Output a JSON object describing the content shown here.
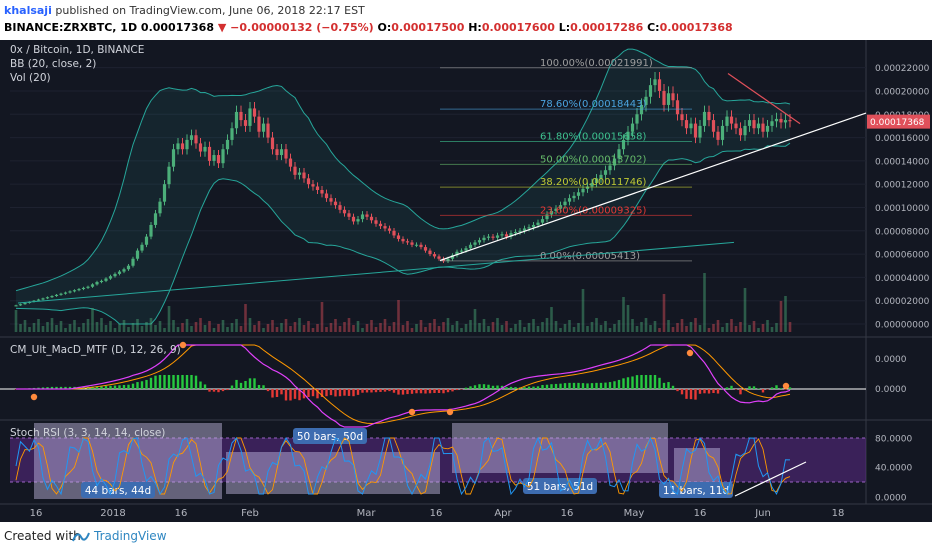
{
  "header": {
    "user": "khalsaji",
    "published": "published on TradingView.com, June 06, 2018 22:17 EST",
    "symbol": "BINANCE:ZRXBTC, 1D",
    "last": "0.00017368",
    "change": "−0.00000132 (−0.75%)",
    "o_label": "O:",
    "o": "0.00017500",
    "h_label": "H:",
    "h": "0.00017600",
    "l_label": "L:",
    "l": "0.00017286",
    "c_label": "C:",
    "c": "0.00017368"
  },
  "legend": {
    "title": "0x / Bitcoin, 1D, BINANCE",
    "bb": "BB (20, close, 2)",
    "vol": "Vol (20)",
    "macd": "CM_Ult_MacD_MTF (D, 12, 26, 9)",
    "stoch": "Stoch RSI (3, 3, 14, 14, close)"
  },
  "footer": {
    "created": "Created with",
    "brand": "TradingView"
  },
  "colors": {
    "background": "#131722",
    "up": "#4caf7a",
    "down": "#e0505a",
    "bb": "#26a69a",
    "fib": "#9e9e9e",
    "trend": "#ffffff",
    "macd": "#e040fb",
    "signal": "#ff9800",
    "stoch_k": "#2196f3",
    "stoch_bg": "#5b2a86"
  },
  "chart_data": {
    "type": "candlestick",
    "x_ticks": [
      "16",
      "2018",
      "16",
      "Feb",
      "Mar",
      "16",
      "Apr",
      "16",
      "May",
      "16",
      "Jun",
      "18"
    ],
    "y_ticks": [
      "0.00022000",
      "0.00020000",
      "0.00018000",
      "0.00016000",
      "0.00014000",
      "0.00012000",
      "0.00010000",
      "0.00008000",
      "0.00006000",
      "0.00004000",
      "0.00002000",
      "0.00000000"
    ],
    "ylim": [
      0,
      0.00023
    ],
    "last_price_label": "0.00017368",
    "fib_levels": [
      {
        "label": "100.00%(0.00021991)",
        "value": 0.00021991,
        "color": "#9e9e9e"
      },
      {
        "label": "78.60%(0.00018443)",
        "value": 0.00018443,
        "color": "#4aa3df"
      },
      {
        "label": "61.80%(0.00015658)",
        "value": 0.00015658,
        "color": "#3ec28f"
      },
      {
        "label": "50.00%(0.00013702)",
        "value": 0.00013702,
        "color": "#66bb6a"
      },
      {
        "label": "38.20%(0.00011746)",
        "value": 0.00011746,
        "color": "#c0ca33"
      },
      {
        "label": "23.60%(0.00009325)",
        "value": 9.325e-05,
        "color": "#e53935"
      },
      {
        "label": "0.00%(0.00005413)",
        "value": 5.413e-05,
        "color": "#9e9e9e"
      }
    ],
    "close_series": [
      1.6e-05,
      1.7e-05,
      1.8e-05,
      1.9e-05,
      2e-05,
      2.1e-05,
      2.2e-05,
      2.3e-05,
      2.4e-05,
      2.5e-05,
      2.6e-05,
      2.7e-05,
      2.8e-05,
      2.9e-05,
      3e-05,
      3.1e-05,
      3.2e-05,
      3.4e-05,
      3.6e-05,
      3.7e-05,
      3.9e-05,
      4.1e-05,
      4.3e-05,
      4.5e-05,
      4.7e-05,
      5e-05,
      5.6e-05,
      6.3e-05,
      6.8e-05,
      7.5e-05,
      8.5e-05,
      9.5e-05,
      0.000105,
      0.00012,
      0.000135,
      0.00015,
      0.000155,
      0.00015,
      0.000158,
      0.000162,
      0.000155,
      0.000148,
      0.000152,
      0.00014,
      0.000145,
      0.000138,
      0.00015,
      0.000158,
      0.000168,
      0.000182,
      0.000175,
      0.00017,
      0.000185,
      0.000178,
      0.000165,
      0.000172,
      0.00016,
      0.00015,
      0.000145,
      0.00015,
      0.000142,
      0.000135,
      0.000128,
      0.00013,
      0.000125,
      0.00012,
      0.000118,
      0.000115,
      0.000112,
      0.000108,
      0.000105,
      0.000102,
      9.8e-05,
      9.5e-05,
      9.2e-05,
      8.8e-05,
      9e-05,
      9.4e-05,
      9.2e-05,
      8.9e-05,
      8.6e-05,
      8.4e-05,
      8.2e-05,
      8e-05,
      7.6e-05,
      7.3e-05,
      7.1e-05,
      7e-05,
      6.8e-05,
      6.8e-05,
      6.6e-05,
      6.3e-05,
      6e-05,
      5.8e-05,
      5.6e-05,
      5.4e-05,
      5.6e-05,
      5.9e-05,
      6.2e-05,
      6.3e-05,
      6.5e-05,
      6.8e-05,
      7e-05,
      7.2e-05,
      7.4e-05,
      7.5e-05,
      7.4e-05,
      7.6e-05,
      7.7e-05,
      7.5e-05,
      7.8e-05,
      7.9e-05,
      8e-05,
      8.2e-05,
      8.3e-05,
      8.5e-05,
      8.7e-05,
      9e-05,
      9.4e-05,
      9.7e-05,
      9.9e-05,
      0.000102,
      0.000105,
      0.000108,
      0.00011,
      0.000113,
      0.000116,
      0.000118,
      0.000121,
      0.000125,
      0.000128,
      0.000132,
      0.000136,
      0.000142,
      0.00015,
      0.000158,
      0.000165,
      0.000172,
      0.00018,
      0.000188,
      0.000195,
      0.000205,
      0.00021,
      0.0002,
      0.000188,
      0.000198,
      0.000192,
      0.00018,
      0.000175,
      0.000168,
      0.000172,
      0.00016,
      0.00017,
      0.000182,
      0.000175,
      0.000165,
      0.000158,
      0.00017,
      0.000178,
      0.000172,
      0.000168,
      0.000162,
      0.00017,
      0.000175,
      0.000168,
      0.000172,
      0.000165,
      0.00017,
      0.000174,
      0.000176,
      0.000173,
      0.000175,
      0.000174
    ],
    "macd_markers": [
      {
        "label": ""
      }
    ],
    "stoch_boxes": [
      {
        "label": "44 bars, 44d"
      },
      {
        "label": "50 bars, 50d"
      },
      {
        "label": "51 bars, 51d"
      },
      {
        "label": "11 bars, 11d"
      }
    ],
    "macd_ticks": [
      "0.0000",
      "0.0000"
    ],
    "stoch_ticks": [
      "80.0000",
      "40.0000",
      "0.0000"
    ]
  }
}
